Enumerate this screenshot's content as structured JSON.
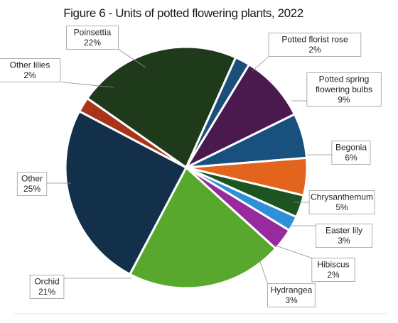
{
  "chart_data": {
    "type": "pie",
    "title": "Figure 6 - Units of potted flowering plants, 2022",
    "unit": "%",
    "slices": [
      {
        "label": "Poinsettia",
        "label_lines": [
          "Poinsettia"
        ],
        "value": 22,
        "value_text": "22%",
        "color": "#1e3a1a"
      },
      {
        "label": "Potted florist rose",
        "label_lines": [
          "Potted florist rose"
        ],
        "value": 2,
        "value_text": "2%",
        "color": "#1b4f79"
      },
      {
        "label": "Potted spring flowering bulbs",
        "label_lines": [
          "Potted spring",
          "flowering bulbs"
        ],
        "value": 9,
        "value_text": "9%",
        "color": "#4a1a4f"
      },
      {
        "label": "Begonia",
        "label_lines": [
          "Begonia"
        ],
        "value": 6,
        "value_text": "6%",
        "color": "#19507d"
      },
      {
        "label": "Chrysanthemum",
        "label_lines": [
          "Chrysanthemum"
        ],
        "value": 5,
        "value_text": "5%",
        "color": "#e3651d"
      },
      {
        "label": "Easter lily",
        "label_lines": [
          "Easter lily"
        ],
        "value": 3,
        "value_text": "3%",
        "color": "#1e5422"
      },
      {
        "label": "Hibiscus",
        "label_lines": [
          "Hibiscus"
        ],
        "value": 2,
        "value_text": "2%",
        "color": "#2e90d8"
      },
      {
        "label": "Hydrangea",
        "label_lines": [
          "Hydrangea"
        ],
        "value": 3,
        "value_text": "3%",
        "color": "#972a9c"
      },
      {
        "label": "Orchid",
        "label_lines": [
          "Orchid"
        ],
        "value": 21,
        "value_text": "21%",
        "color": "#58a82d"
      },
      {
        "label": "Other",
        "label_lines": [
          "Other"
        ],
        "value": 25,
        "value_text": "25%",
        "color": "#12304a"
      },
      {
        "label": "Other lilies",
        "label_lines": [
          "Other lilies"
        ],
        "value": 2,
        "value_text": "2%",
        "color": "#a8351a"
      }
    ]
  }
}
